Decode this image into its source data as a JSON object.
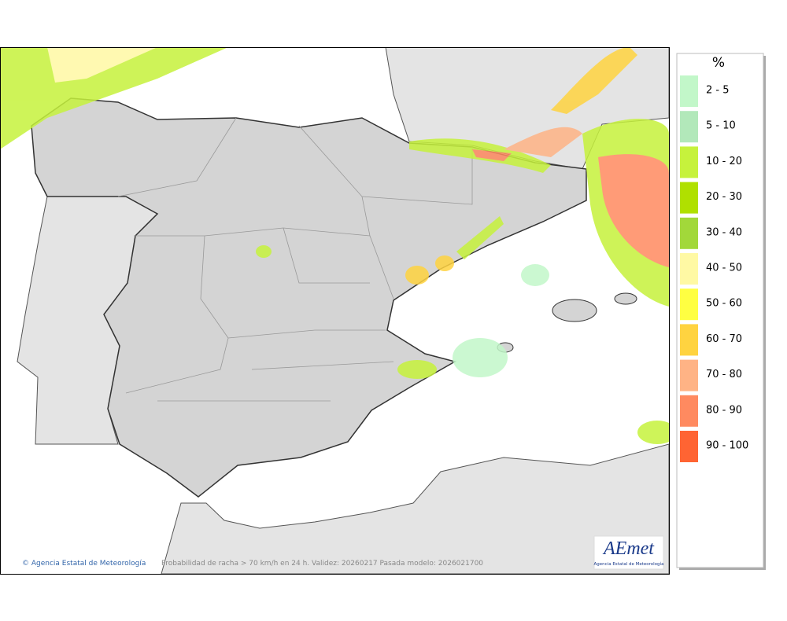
{
  "legend": {
    "title": "%",
    "items": [
      {
        "label": "2 - 5",
        "color": "#c2f7c9"
      },
      {
        "label": "5 - 10",
        "color": "#b2e8ba"
      },
      {
        "label": "10 - 20",
        "color": "#c6f23c"
      },
      {
        "label": "20 - 30",
        "color": "#b0e000"
      },
      {
        "label": "30 - 40",
        "color": "#a2d83a"
      },
      {
        "label": "40 - 50",
        "color": "#fff9a4"
      },
      {
        "label": "50 - 60",
        "color": "#ffff42"
      },
      {
        "label": "60 - 70",
        "color": "#ffd340"
      },
      {
        "label": "70 - 80",
        "color": "#ffb385"
      },
      {
        "label": "80 - 90",
        "color": "#ff8a60"
      },
      {
        "label": "90 - 100",
        "color": "#ff6433"
      }
    ]
  },
  "footer": {
    "copyright": "Agencia Estatal de Meteorología",
    "caption": "Probabilidad de racha > 70 km/h en 24 h. Validez: 20260217 Pasada modelo: 2026021700"
  },
  "logo": {
    "text": "AEmet",
    "subtitle": "Agencia Estatal de Meteorología"
  }
}
